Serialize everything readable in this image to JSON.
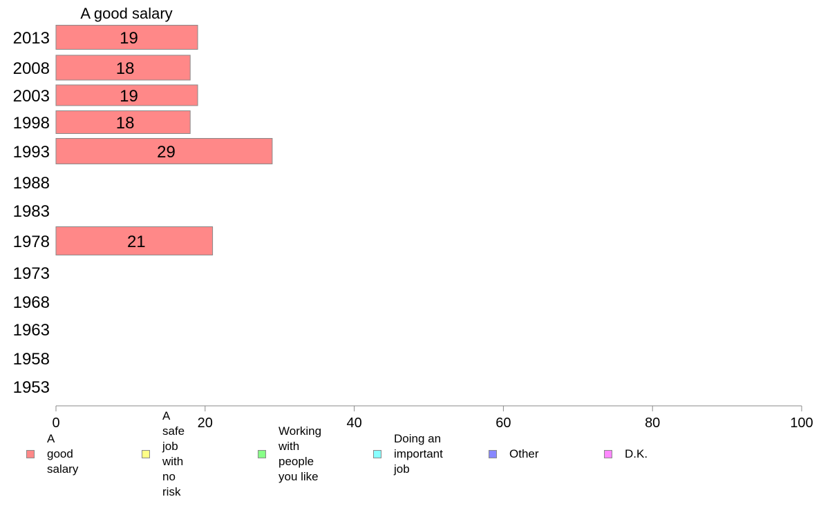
{
  "chart_data": {
    "type": "bar",
    "orientation": "horizontal",
    "series_title": "A good salary",
    "categories": [
      "2013",
      "2008",
      "2003",
      "1998",
      "1993",
      "1988",
      "1983",
      "1978",
      "1973",
      "1968",
      "1963",
      "1958",
      "1953"
    ],
    "series": [
      {
        "name": "A good salary",
        "values": [
          19,
          18,
          19,
          18,
          29,
          null,
          null,
          21,
          null,
          null,
          null,
          null,
          null
        ],
        "color": "#ff8888"
      }
    ],
    "xlim": [
      0,
      100
    ],
    "xticks": [
      0,
      20,
      40,
      60,
      80,
      100
    ],
    "grid": false,
    "legend_position": "bottom",
    "legend": [
      {
        "label": "A good salary",
        "color": "#ff8888"
      },
      {
        "label": "A safe job\nwith no risk",
        "color": "#ffff88"
      },
      {
        "label": "Working with\npeople you like",
        "color": "#88ff88"
      },
      {
        "label": "Doing an\nimportant job",
        "color": "#88ffff"
      },
      {
        "label": "Other",
        "color": "#8888ff"
      },
      {
        "label": "D.K.",
        "color": "#ff88ff"
      }
    ]
  }
}
